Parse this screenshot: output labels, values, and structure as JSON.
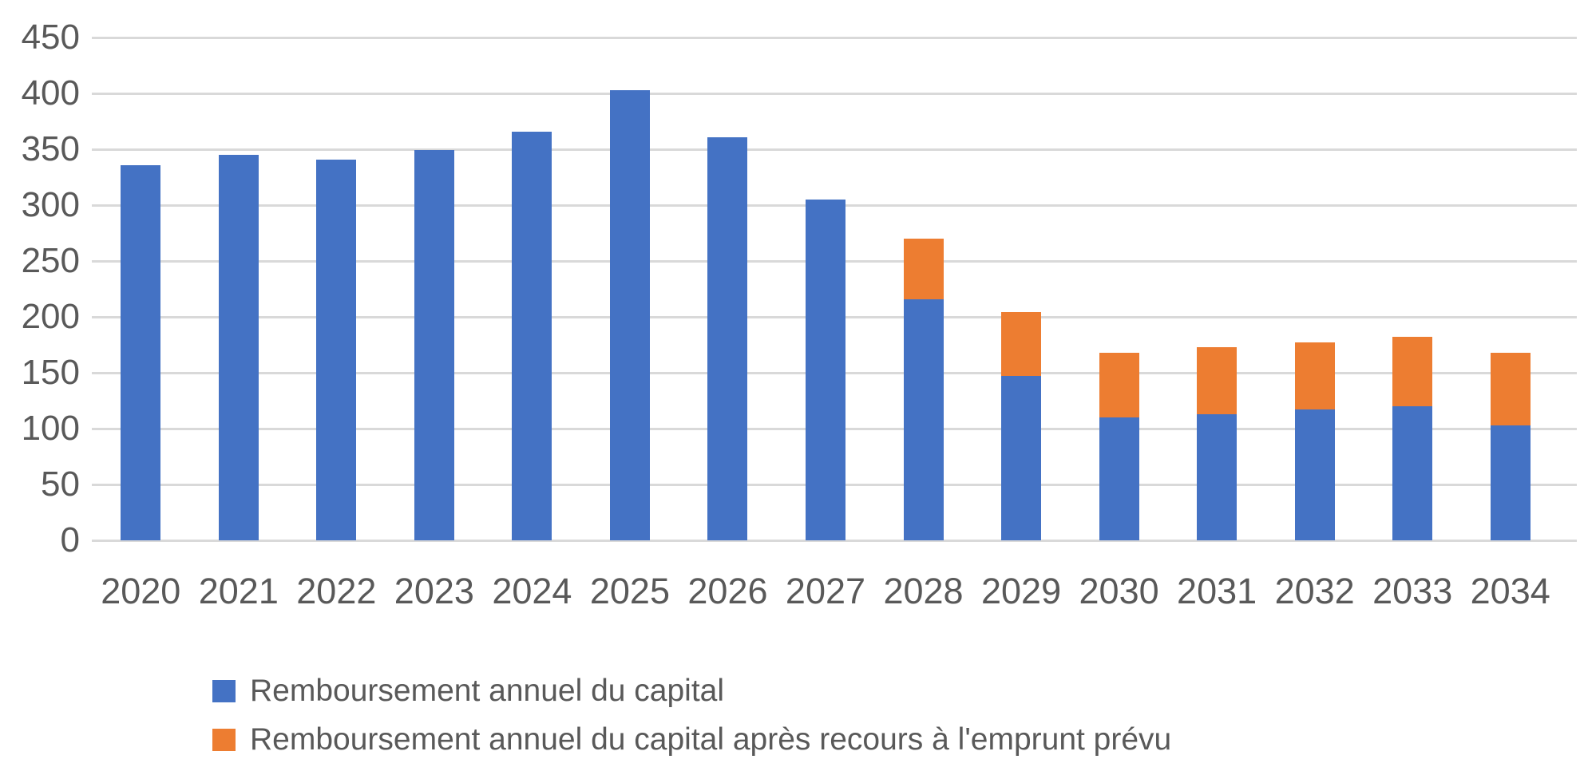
{
  "chart_data": {
    "type": "bar",
    "stacked": true,
    "title": "",
    "xlabel": "",
    "ylabel": "",
    "categories": [
      "2020",
      "2021",
      "2022",
      "2023",
      "2024",
      "2025",
      "2026",
      "2027",
      "2028",
      "2029",
      "2030",
      "2031",
      "2032",
      "2033",
      "2034"
    ],
    "series": [
      {
        "name": "Remboursement annuel du capital",
        "color": "#4472C4",
        "values": [
          336,
          345,
          341,
          349,
          366,
          403,
          361,
          305,
          216,
          147,
          110,
          113,
          117,
          120,
          103
        ]
      },
      {
        "name": "Remboursement annuel du capital après recours à l'emprunt prévu",
        "color": "#ED7D31",
        "values": [
          0,
          0,
          0,
          0,
          0,
          0,
          0,
          0,
          54,
          57,
          58,
          60,
          60,
          62,
          65
        ]
      }
    ],
    "stacked_totals": [
      336,
      345,
      341,
      349,
      366,
      403,
      361,
      305,
      270,
      204,
      168,
      173,
      177,
      182,
      168
    ],
    "ylim": [
      0,
      450
    ],
    "yticks": [
      0,
      50,
      100,
      150,
      200,
      250,
      300,
      350,
      400,
      450
    ],
    "grid": true,
    "legend_position": "bottom-left",
    "colors": {
      "grid": "#D9D9D9",
      "text": "#595959",
      "background": "#FFFFFF"
    }
  }
}
